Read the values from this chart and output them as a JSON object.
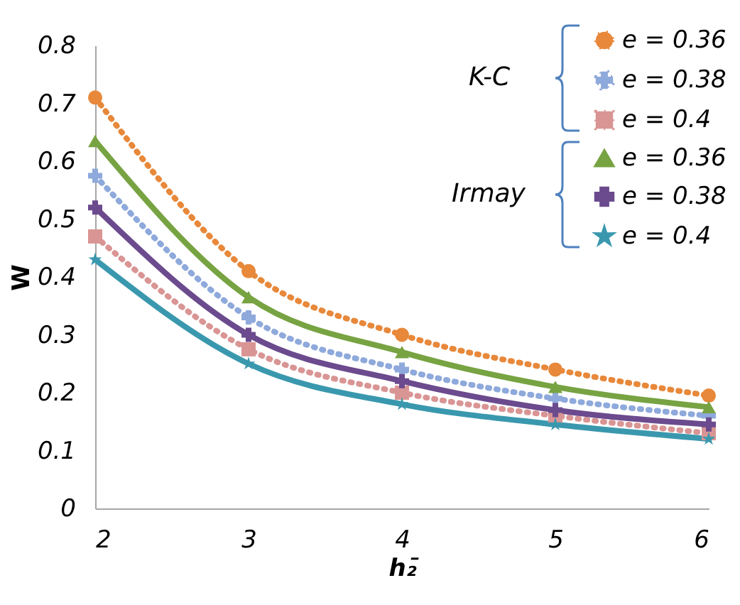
{
  "chart_data": {
    "type": "line",
    "xlabel": "h₂̄",
    "ylabel": "W",
    "x": [
      2,
      3,
      4,
      5,
      6
    ],
    "xlim": [
      2,
      6
    ],
    "xticks": [
      2,
      3,
      4,
      5,
      6
    ],
    "ylim": [
      0,
      0.8
    ],
    "yticks": [
      0,
      0.1,
      0.2,
      0.3,
      0.4,
      0.5,
      0.6,
      0.7,
      0.8
    ],
    "grid": false,
    "legend": "top right",
    "annotations": [
      "K-C",
      "Irmay"
    ],
    "series": [
      {
        "name": "e = 0.36",
        "color": "#e8883a",
        "marker": "circle",
        "line_style": "dotted",
        "values": [
          0.71,
          0.41,
          0.3,
          0.24,
          0.195
        ]
      },
      {
        "name": "e = 0.38",
        "color": "#8ea9db",
        "marker": "cross",
        "line_style": "dotted",
        "values": [
          0.575,
          0.33,
          0.24,
          0.19,
          0.16
        ]
      },
      {
        "name": "e = 0.4",
        "color": "#d99594",
        "marker": "square",
        "line_style": "dotted",
        "values": [
          0.47,
          0.275,
          0.2,
          0.16,
          0.13
        ]
      },
      {
        "name": "e = 0.36",
        "color": "#77a342",
        "marker": "triangle",
        "line_style": "solid",
        "values": [
          0.635,
          0.365,
          0.27,
          0.21,
          0.175
        ]
      },
      {
        "name": "e = 0.38",
        "color": "#6b4a8e",
        "marker": "cross",
        "line_style": "solid",
        "values": [
          0.52,
          0.3,
          0.22,
          0.17,
          0.145
        ]
      },
      {
        "name": "e = 0.4",
        "color": "#3a98ae",
        "marker": "star",
        "line_style": "solid",
        "values": [
          0.43,
          0.25,
          0.18,
          0.145,
          0.12
        ]
      }
    ]
  }
}
